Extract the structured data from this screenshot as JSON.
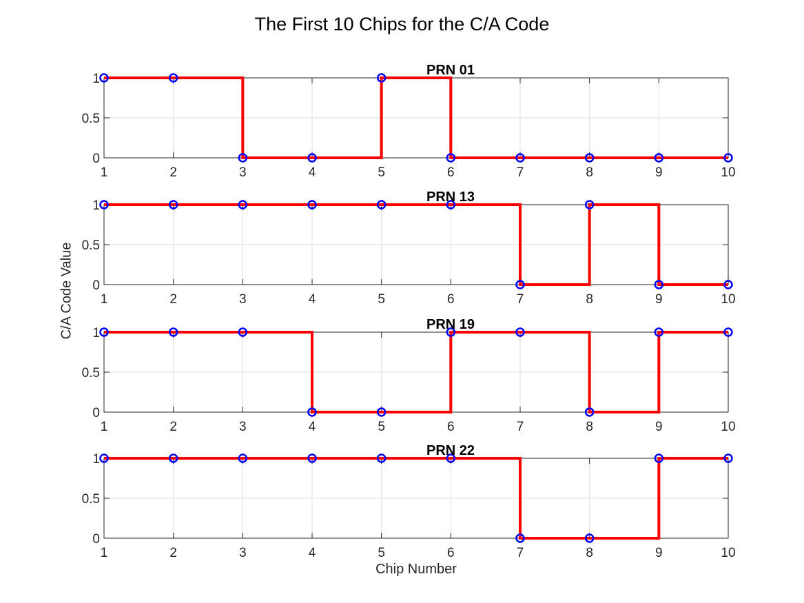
{
  "figure": {
    "title": "The First 10 Chips for the C/A Code",
    "xlabel": "Chip Number",
    "ylabel": "C/A Code Value"
  },
  "chart_data": [
    {
      "type": "line",
      "style": "stairs-with-markers",
      "title": "PRN 01",
      "x": [
        1,
        2,
        3,
        4,
        5,
        6,
        7,
        8,
        9,
        10
      ],
      "values": [
        1,
        1,
        0,
        0,
        1,
        0,
        0,
        0,
        0,
        0
      ],
      "xlim": [
        1,
        10
      ],
      "ylim": [
        0,
        1
      ],
      "xticks": [
        "1",
        "2",
        "3",
        "4",
        "5",
        "6",
        "7",
        "8",
        "9",
        "10"
      ],
      "yticks": [
        "0",
        "0.5",
        "1"
      ],
      "grid": true,
      "line_color": "#ff0000",
      "marker_color": "#0000ff"
    },
    {
      "type": "line",
      "style": "stairs-with-markers",
      "title": "PRN 13",
      "x": [
        1,
        2,
        3,
        4,
        5,
        6,
        7,
        8,
        9,
        10
      ],
      "values": [
        1,
        1,
        1,
        1,
        1,
        1,
        0,
        1,
        0,
        0
      ],
      "xlim": [
        1,
        10
      ],
      "ylim": [
        0,
        1
      ],
      "xticks": [
        "1",
        "2",
        "3",
        "4",
        "5",
        "6",
        "7",
        "8",
        "9",
        "10"
      ],
      "yticks": [
        "0",
        "0.5",
        "1"
      ],
      "grid": true,
      "line_color": "#ff0000",
      "marker_color": "#0000ff"
    },
    {
      "type": "line",
      "style": "stairs-with-markers",
      "title": "PRN 19",
      "x": [
        1,
        2,
        3,
        4,
        5,
        6,
        7,
        8,
        9,
        10
      ],
      "values": [
        1,
        1,
        1,
        0,
        0,
        1,
        1,
        0,
        1,
        1
      ],
      "xlim": [
        1,
        10
      ],
      "ylim": [
        0,
        1
      ],
      "xticks": [
        "1",
        "2",
        "3",
        "4",
        "5",
        "6",
        "7",
        "8",
        "9",
        "10"
      ],
      "yticks": [
        "0",
        "0.5",
        "1"
      ],
      "grid": true,
      "line_color": "#ff0000",
      "marker_color": "#0000ff"
    },
    {
      "type": "line",
      "style": "stairs-with-markers",
      "title": "PRN 22",
      "x": [
        1,
        2,
        3,
        4,
        5,
        6,
        7,
        8,
        9,
        10
      ],
      "values": [
        1,
        1,
        1,
        1,
        1,
        1,
        0,
        0,
        1,
        1
      ],
      "xlim": [
        1,
        10
      ],
      "ylim": [
        0,
        1
      ],
      "xticks": [
        "1",
        "2",
        "3",
        "4",
        "5",
        "6",
        "7",
        "8",
        "9",
        "10"
      ],
      "yticks": [
        "0",
        "0.5",
        "1"
      ],
      "grid": true,
      "line_color": "#ff0000",
      "marker_color": "#0000ff"
    }
  ]
}
